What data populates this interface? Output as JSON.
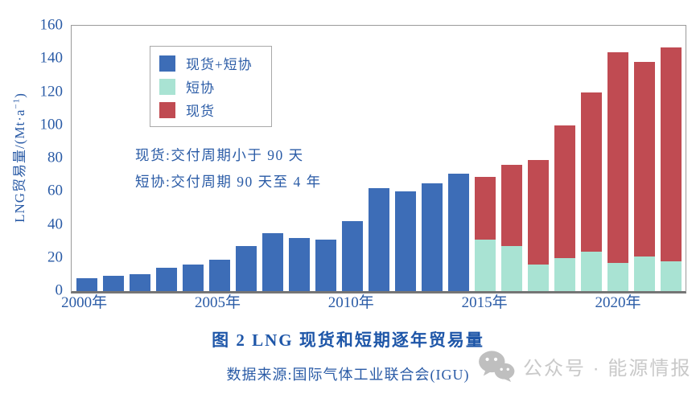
{
  "figure": {
    "caption": "图 2  LNG 现货和短期逐年贸易量",
    "source": "数据来源:国际气体工业联合会(IGU)",
    "watermark_text": "公众号 · 能源情报"
  },
  "annotations": {
    "line1": "现货:交付周期小于 90 天",
    "line2": "短协:交付周期 90 天至 4 年"
  },
  "chart_data": {
    "type": "bar",
    "stacked": true,
    "title": "图 2 LNG 现货和短期逐年贸易量",
    "ylabel": "LNG贸易量/(Mt·a⁻¹)",
    "ylabel_parts": {
      "main": "LNG贸易量/(Mt·a",
      "sup": "−1",
      "close": ")"
    },
    "ylim": [
      0,
      160
    ],
    "yticks": [
      0,
      20,
      40,
      60,
      80,
      100,
      120,
      140,
      160
    ],
    "grid": false,
    "years": [
      2000,
      2001,
      2002,
      2003,
      2004,
      2005,
      2006,
      2007,
      2008,
      2009,
      2010,
      2011,
      2012,
      2013,
      2014,
      2015,
      2016,
      2017,
      2018,
      2019,
      2020,
      2021,
      2022
    ],
    "x_ticks": [
      {
        "label": "2000年",
        "index": 0
      },
      {
        "label": "2005年",
        "index": 5
      },
      {
        "label": "2010年",
        "index": 10
      },
      {
        "label": "2015年",
        "index": 15
      },
      {
        "label": "2020年",
        "index": 20
      }
    ],
    "series": [
      {
        "name": "现货+短协",
        "color": "#3d6db7",
        "values": [
          8,
          9,
          10,
          14,
          16,
          19,
          27,
          35,
          32,
          31,
          42,
          62,
          60,
          65,
          71,
          0,
          0,
          0,
          0,
          0,
          0,
          0,
          0
        ]
      },
      {
        "name": "短协",
        "color": "#a9e3d3",
        "values": [
          0,
          0,
          0,
          0,
          0,
          0,
          0,
          0,
          0,
          0,
          0,
          0,
          0,
          0,
          0,
          31,
          27,
          16,
          20,
          24,
          17,
          21,
          18
        ]
      },
      {
        "name": "现货",
        "color": "#c04b52",
        "values": [
          0,
          0,
          0,
          0,
          0,
          0,
          0,
          0,
          0,
          0,
          0,
          0,
          0,
          0,
          0,
          38,
          49,
          63,
          80,
          96,
          127,
          117,
          129
        ]
      }
    ],
    "legend": {
      "position": "upper-left-inside",
      "entries": [
        {
          "label": "现货+短协",
          "color": "#3d6db7"
        },
        {
          "label": "短协",
          "color": "#a9e3d3"
        },
        {
          "label": "现货",
          "color": "#c04b52"
        }
      ]
    }
  }
}
